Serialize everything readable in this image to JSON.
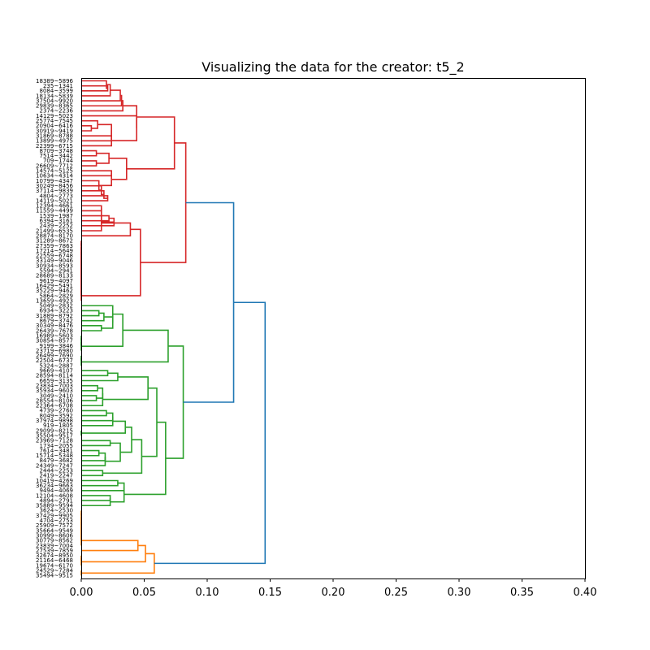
{
  "chart_data": {
    "type": "dendrogram",
    "title": "Visualizing the data for the creator: t5_2",
    "xlabel": "",
    "ylabel": "",
    "xlim": [
      0.0,
      0.4
    ],
    "xticks": [
      "0.00",
      "0.05",
      "0.10",
      "0.15",
      "0.20",
      "0.25",
      "0.30",
      "0.35",
      "0.40"
    ],
    "grid": false,
    "colors": {
      "red": "#d62728",
      "green": "#2ca02c",
      "orange": "#ff7f0e",
      "root": "#1f77b4"
    },
    "leaves": [
      "18389~5896",
      "235~1341",
      "8084~3599",
      "18134~5839",
      "37504~9920",
      "29839~8365",
      "2374~2236",
      "14129~5023",
      "25774~7545",
      "20904~6416",
      "30919~9419",
      "31869~8788",
      "13899~4975",
      "22399~6715",
      "8709~3748",
      "7514~3442",
      "709~1744",
      "26609~7712",
      "14574~5125",
      "10634~4314",
      "10799~4347",
      "30249~8456",
      "37114~9839",
      "4804~2773",
      "14119~5021",
      "12394~4661",
      "11559~4499",
      "1539~1987",
      "6394~3161",
      "2439~2252",
      "21499~6535",
      "28874~8170",
      "31289~8672",
      "27359~7863",
      "17214~5649",
      "22559~6748",
      "33149~9046",
      "30934~8593",
      "5594~2941",
      "28689~8133",
      "9619~4097",
      "16429~5491",
      "35229~9462",
      "5864~2829",
      "13659~4923",
      "5049~2832",
      "6934~3223",
      "31889~8792",
      "8679~3742",
      "30349~8476",
      "26439~7678",
      "16989~5603",
      "30854~8577",
      "9199~3846",
      "23719~6980",
      "26499~7690",
      "22504~6737",
      "5324~2887",
      "9669~4107",
      "28594~8114",
      "6659~3135",
      "23834~7003",
      "35934~9603",
      "3049~2410",
      "28554~8106",
      "22364~6708",
      "4739~2760",
      "8049~3592",
      "37974~9898",
      "919~1805",
      "29099~8215",
      "35504~9517",
      "23969~7128",
      "1734~2055",
      "7614~3481",
      "15714~5348",
      "8479~3682",
      "24349~7247",
      "2444~2253",
      "2419~2247",
      "10419~4269",
      "36234~9663",
      "9494~4069",
      "12104~4608",
      "4894~2791",
      "35889~9594",
      "3624~2530",
      "37429~9905",
      "4704~2753",
      "25909~7572",
      "35664~9549",
      "30999~8606",
      "30779~8562",
      "23839~7004",
      "27539~7859",
      "32674~8950",
      "21164~6468",
      "19674~6170",
      "24529~7284",
      "35494~9515"
    ],
    "merges": [
      {
        "a": [
          "leaf",
          1
        ],
        "b": [
          "leaf",
          2
        ],
        "h": 0.021,
        "color": "red"
      },
      {
        "a": [
          "leaf",
          0
        ],
        "b": [
          "node",
          0
        ],
        "h": 0.02,
        "color": "red"
      },
      {
        "a": [
          "node",
          1
        ],
        "b": [
          "leaf",
          3
        ],
        "h": 0.023,
        "color": "red"
      },
      {
        "a": [
          "node",
          2
        ],
        "b": [
          "leaf",
          4
        ],
        "h": 0.031,
        "color": "red"
      },
      {
        "a": [
          "node",
          3
        ],
        "b": [
          "leaf",
          5
        ],
        "h": 0.032,
        "color": "red"
      },
      {
        "a": [
          "node",
          4
        ],
        "b": [
          "leaf",
          6
        ],
        "h": 0.033,
        "color": "red"
      },
      {
        "a": [
          "leaf",
          9
        ],
        "b": [
          "leaf",
          10
        ],
        "h": 0.008,
        "color": "red"
      },
      {
        "a": [
          "leaf",
          8
        ],
        "b": [
          "node",
          6
        ],
        "h": 0.013,
        "color": "red"
      },
      {
        "a": [
          "node",
          7
        ],
        "b": [
          "leaf",
          11
        ],
        "h": 0.024,
        "color": "red"
      },
      {
        "a": [
          "node",
          8
        ],
        "b": [
          "leaf",
          12
        ],
        "h": 0.024,
        "color": "red"
      },
      {
        "a": [
          "node",
          9
        ],
        "b": [
          "leaf",
          13
        ],
        "h": 0.024,
        "color": "red"
      },
      {
        "a": [
          "leaf",
          7
        ],
        "b": [
          "node",
          10
        ],
        "h": 0.044,
        "color": "red"
      },
      {
        "a": [
          "node",
          5
        ],
        "b": [
          "node",
          11
        ],
        "h": 0.044,
        "color": "red"
      },
      {
        "a": [
          "leaf",
          14
        ],
        "b": [
          "leaf",
          15
        ],
        "h": 0.012,
        "color": "red"
      },
      {
        "a": [
          "leaf",
          16
        ],
        "b": [
          "leaf",
          17
        ],
        "h": 0.012,
        "color": "red"
      },
      {
        "a": [
          "node",
          13
        ],
        "b": [
          "node",
          14
        ],
        "h": 0.022,
        "color": "red"
      },
      {
        "a": [
          "leaf",
          23
        ],
        "b": [
          "leaf",
          24
        ],
        "h": 0.021,
        "color": "red"
      },
      {
        "a": [
          "leaf",
          22
        ],
        "b": [
          "node",
          16
        ],
        "h": 0.018,
        "color": "red"
      },
      {
        "a": [
          "leaf",
          21
        ],
        "b": [
          "node",
          17
        ],
        "h": 0.016,
        "color": "red"
      },
      {
        "a": [
          "leaf",
          20
        ],
        "b": [
          "node",
          18
        ],
        "h": 0.014,
        "color": "red"
      },
      {
        "a": [
          "leaf",
          18
        ],
        "b": [
          "leaf",
          19
        ],
        "h": 0.024,
        "color": "red"
      },
      {
        "a": [
          "node",
          20
        ],
        "b": [
          "node",
          19
        ],
        "h": 0.024,
        "color": "red"
      },
      {
        "a": [
          "node",
          15
        ],
        "b": [
          "node",
          21
        ],
        "h": 0.036,
        "color": "red"
      },
      {
        "a": [
          "node",
          12
        ],
        "b": [
          "node",
          22
        ],
        "h": 0.074,
        "color": "red"
      },
      {
        "a": [
          "leaf",
          27
        ],
        "b": [
          "leaf",
          28
        ],
        "h": 0.022,
        "color": "red"
      },
      {
        "a": [
          "node",
          24
        ],
        "b": [
          "leaf",
          29
        ],
        "h": 0.026,
        "color": "red"
      },
      {
        "a": [
          "leaf",
          25
        ],
        "b": [
          "leaf",
          26
        ],
        "h": 0.016,
        "color": "red"
      },
      {
        "a": [
          "node",
          26
        ],
        "b": [
          "node",
          25
        ],
        "h": 0.016,
        "color": "red"
      },
      {
        "a": [
          "node",
          27
        ],
        "b": [
          "leaf",
          30
        ],
        "h": 0.016,
        "color": "red"
      },
      {
        "a": [
          "node",
          28
        ],
        "b": [
          "leaf",
          31
        ],
        "h": 0.039,
        "color": "red"
      },
      {
        "a": [
          "leaf",
          32
        ],
        "b": [
          "leaf",
          33
        ],
        "h": 0.0,
        "color": "red"
      },
      {
        "a": [
          "node",
          30
        ],
        "b": [
          "leaf",
          34
        ],
        "h": 0.0,
        "color": "red"
      },
      {
        "a": [
          "node",
          31
        ],
        "b": [
          "leaf",
          35
        ],
        "h": 0.0,
        "color": "red"
      },
      {
        "a": [
          "node",
          32
        ],
        "b": [
          "leaf",
          36
        ],
        "h": 0.0,
        "color": "red"
      },
      {
        "a": [
          "node",
          33
        ],
        "b": [
          "leaf",
          37
        ],
        "h": 0.0,
        "color": "red"
      },
      {
        "a": [
          "node",
          34
        ],
        "b": [
          "leaf",
          38
        ],
        "h": 0.0,
        "color": "red"
      },
      {
        "a": [
          "node",
          35
        ],
        "b": [
          "leaf",
          39
        ],
        "h": 0.0,
        "color": "red"
      },
      {
        "a": [
          "node",
          36
        ],
        "b": [
          "leaf",
          40
        ],
        "h": 0.0,
        "color": "red"
      },
      {
        "a": [
          "node",
          37
        ],
        "b": [
          "leaf",
          41
        ],
        "h": 0.0,
        "color": "red"
      },
      {
        "a": [
          "node",
          38
        ],
        "b": [
          "leaf",
          42
        ],
        "h": 0.0,
        "color": "red"
      },
      {
        "a": [
          "node",
          39
        ],
        "b": [
          "leaf",
          43
        ],
        "h": 0.0,
        "color": "red"
      },
      {
        "a": [
          "node",
          40
        ],
        "b": [
          "leaf",
          44
        ],
        "h": 0.0,
        "color": "red"
      },
      {
        "a": [
          "node",
          29
        ],
        "b": [
          "node",
          41
        ],
        "h": 0.047,
        "color": "red"
      },
      {
        "a": [
          "node",
          23
        ],
        "b": [
          "node",
          42
        ],
        "h": 0.083,
        "color": "red"
      },
      {
        "a": [
          "leaf",
          46
        ],
        "b": [
          "leaf",
          47
        ],
        "h": 0.014,
        "color": "green"
      },
      {
        "a": [
          "node",
          44
        ],
        "b": [
          "leaf",
          48
        ],
        "h": 0.018,
        "color": "green"
      },
      {
        "a": [
          "leaf",
          49
        ],
        "b": [
          "leaf",
          50
        ],
        "h": 0.016,
        "color": "green"
      },
      {
        "a": [
          "node",
          45
        ],
        "b": [
          "node",
          46
        ],
        "h": 0.025,
        "color": "green"
      },
      {
        "a": [
          "leaf",
          45
        ],
        "b": [
          "node",
          47
        ],
        "h": 0.025,
        "color": "green"
      },
      {
        "a": [
          "leaf",
          51
        ],
        "b": [
          "leaf",
          52
        ],
        "h": 0.0,
        "color": "green"
      },
      {
        "a": [
          "node",
          49
        ],
        "b": [
          "leaf",
          53
        ],
        "h": 0.0,
        "color": "green"
      },
      {
        "a": [
          "node",
          50
        ],
        "b": [
          "leaf",
          54
        ],
        "h": 0.0,
        "color": "green"
      },
      {
        "a": [
          "node",
          48
        ],
        "b": [
          "node",
          51
        ],
        "h": 0.033,
        "color": "green"
      },
      {
        "a": [
          "leaf",
          55
        ],
        "b": [
          "leaf",
          56
        ],
        "h": 0.0,
        "color": "green"
      },
      {
        "a": [
          "node",
          53
        ],
        "b": [
          "leaf",
          57
        ],
        "h": 0.0,
        "color": "green"
      },
      {
        "a": [
          "node",
          52
        ],
        "b": [
          "node",
          54
        ],
        "h": 0.069,
        "color": "green"
      },
      {
        "a": [
          "leaf",
          58
        ],
        "b": [
          "leaf",
          59
        ],
        "h": 0.021,
        "color": "green"
      },
      {
        "a": [
          "node",
          56
        ],
        "b": [
          "leaf",
          60
        ],
        "h": 0.029,
        "color": "green"
      },
      {
        "a": [
          "leaf",
          61
        ],
        "b": [
          "leaf",
          62
        ],
        "h": 0.013,
        "color": "green"
      },
      {
        "a": [
          "leaf",
          63
        ],
        "b": [
          "leaf",
          64
        ],
        "h": 0.012,
        "color": "green"
      },
      {
        "a": [
          "node",
          58
        ],
        "b": [
          "node",
          59
        ],
        "h": 0.017,
        "color": "green"
      },
      {
        "a": [
          "node",
          60
        ],
        "b": [
          "leaf",
          65
        ],
        "h": 0.017,
        "color": "green"
      },
      {
        "a": [
          "node",
          57
        ],
        "b": [
          "node",
          61
        ],
        "h": 0.053,
        "color": "green"
      },
      {
        "a": [
          "leaf",
          66
        ],
        "b": [
          "leaf",
          67
        ],
        "h": 0.02,
        "color": "green"
      },
      {
        "a": [
          "node",
          63
        ],
        "b": [
          "leaf",
          68
        ],
        "h": 0.025,
        "color": "green"
      },
      {
        "a": [
          "node",
          64
        ],
        "b": [
          "leaf",
          69
        ],
        "h": 0.025,
        "color": "green"
      },
      {
        "a": [
          "leaf",
          70
        ],
        "b": [
          "leaf",
          71
        ],
        "h": 0.0,
        "color": "green"
      },
      {
        "a": [
          "node",
          65
        ],
        "b": [
          "node",
          66
        ],
        "h": 0.035,
        "color": "green"
      },
      {
        "a": [
          "leaf",
          72
        ],
        "b": [
          "leaf",
          73
        ],
        "h": 0.023,
        "color": "green"
      },
      {
        "a": [
          "leaf",
          74
        ],
        "b": [
          "leaf",
          75
        ],
        "h": 0.014,
        "color": "green"
      },
      {
        "a": [
          "node",
          69
        ],
        "b": [
          "leaf",
          76
        ],
        "h": 0.019,
        "color": "green"
      },
      {
        "a": [
          "node",
          70
        ],
        "b": [
          "leaf",
          77
        ],
        "h": 0.019,
        "color": "green"
      },
      {
        "a": [
          "node",
          68
        ],
        "b": [
          "node",
          71
        ],
        "h": 0.031,
        "color": "green"
      },
      {
        "a": [
          "node",
          67
        ],
        "b": [
          "node",
          72
        ],
        "h": 0.04,
        "color": "green"
      },
      {
        "a": [
          "leaf",
          78
        ],
        "b": [
          "leaf",
          79
        ],
        "h": 0.017,
        "color": "green"
      },
      {
        "a": [
          "node",
          73
        ],
        "b": [
          "node",
          74
        ],
        "h": 0.048,
        "color": "green"
      },
      {
        "a": [
          "node",
          62
        ],
        "b": [
          "node",
          75
        ],
        "h": 0.06,
        "color": "green"
      },
      {
        "a": [
          "leaf",
          80
        ],
        "b": [
          "leaf",
          81
        ],
        "h": 0.029,
        "color": "green"
      },
      {
        "a": [
          "node",
          77
        ],
        "b": [
          "leaf",
          82
        ],
        "h": 0.034,
        "color": "green"
      },
      {
        "a": [
          "leaf",
          83
        ],
        "b": [
          "leaf",
          84
        ],
        "h": 0.023,
        "color": "green"
      },
      {
        "a": [
          "node",
          79
        ],
        "b": [
          "leaf",
          85
        ],
        "h": 0.023,
        "color": "green"
      },
      {
        "a": [
          "node",
          78
        ],
        "b": [
          "node",
          80
        ],
        "h": 0.034,
        "color": "green"
      },
      {
        "a": [
          "node",
          76
        ],
        "b": [
          "node",
          81
        ],
        "h": 0.067,
        "color": "green"
      },
      {
        "a": [
          "node",
          55
        ],
        "b": [
          "node",
          82
        ],
        "h": 0.081,
        "color": "green"
      },
      {
        "a": [
          "node",
          43
        ],
        "b": [
          "node",
          83
        ],
        "h": 0.121,
        "color": "root"
      },
      {
        "a": [
          "leaf",
          86
        ],
        "b": [
          "leaf",
          87
        ],
        "h": 0.0,
        "color": "orange"
      },
      {
        "a": [
          "node",
          85
        ],
        "b": [
          "leaf",
          88
        ],
        "h": 0.0,
        "color": "orange"
      },
      {
        "a": [
          "node",
          86
        ],
        "b": [
          "leaf",
          89
        ],
        "h": 0.0,
        "color": "orange"
      },
      {
        "a": [
          "node",
          87
        ],
        "b": [
          "leaf",
          90
        ],
        "h": 0.0,
        "color": "orange"
      },
      {
        "a": [
          "node",
          88
        ],
        "b": [
          "leaf",
          91
        ],
        "h": 0.0,
        "color": "orange"
      },
      {
        "a": [
          "node",
          89
        ],
        "b": [
          "leaf",
          92
        ],
        "h": 0.0,
        "color": "orange"
      },
      {
        "a": [
          "node",
          90
        ],
        "b": [
          "leaf",
          93
        ],
        "h": 0.0,
        "color": "orange"
      },
      {
        "a": [
          "node",
          91
        ],
        "b": [
          "leaf",
          94
        ],
        "h": 0.045,
        "color": "orange"
      },
      {
        "a": [
          "leaf",
          95
        ],
        "b": [
          "leaf",
          96
        ],
        "h": 0.0,
        "color": "orange"
      },
      {
        "a": [
          "node",
          93
        ],
        "b": [
          "leaf",
          97
        ],
        "h": 0.0,
        "color": "orange"
      },
      {
        "a": [
          "node",
          92
        ],
        "b": [
          "node",
          94
        ],
        "h": 0.051,
        "color": "orange"
      },
      {
        "a": [
          "leaf",
          98
        ],
        "b": [
          "leaf",
          99
        ],
        "h": 0.0,
        "color": "orange"
      },
      {
        "a": [
          "node",
          95
        ],
        "b": [
          "node",
          96
        ],
        "h": 0.058,
        "color": "orange"
      },
      {
        "a": [
          "node",
          84
        ],
        "b": [
          "node",
          97
        ],
        "h": 0.146,
        "color": "root"
      }
    ]
  }
}
